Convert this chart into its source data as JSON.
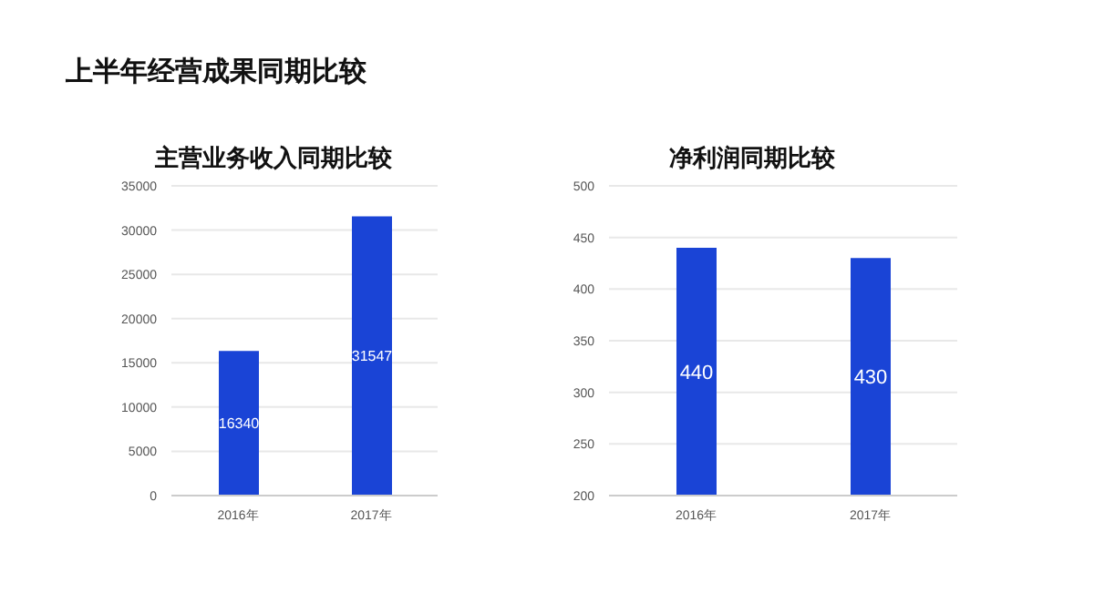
{
  "chart_data": [
    {
      "type": "bar",
      "title": "主营业务收入同期比较",
      "annotations": [
        "上半年经营成果同期比较"
      ],
      "categories": [
        "2016年",
        "2017年"
      ],
      "values": [
        16340,
        31547
      ],
      "color": "#1a44d6",
      "ylim": [
        0,
        35000
      ],
      "yticks": [
        0,
        5000,
        10000,
        15000,
        20000,
        25000,
        30000,
        35000
      ],
      "grid": "y",
      "data_labels": true
    },
    {
      "type": "bar",
      "title": "净利润同期比较",
      "categories": [
        "2016年",
        "2017年"
      ],
      "values": [
        440,
        430
      ],
      "color": "#1a44d6",
      "ylim": [
        200,
        500
      ],
      "yticks": [
        200,
        250,
        300,
        350,
        400,
        450,
        500
      ],
      "grid": "y",
      "data_labels": true
    }
  ]
}
